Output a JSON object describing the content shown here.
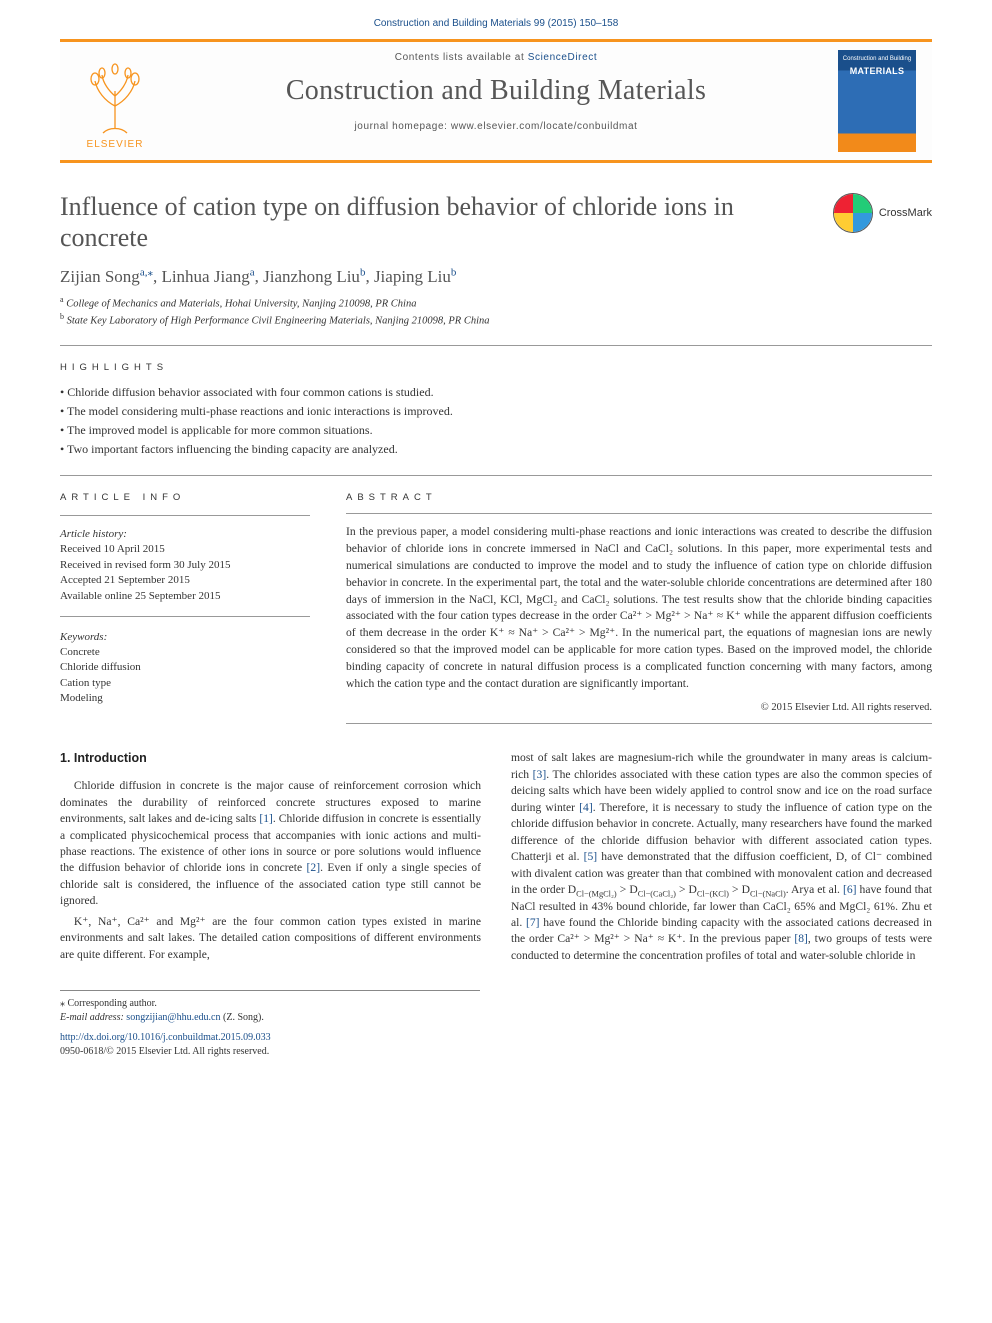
{
  "citation": "Construction and Building Materials 99 (2015) 150–158",
  "masthead": {
    "contents_prefix": "Contents lists available at ",
    "contents_link": "ScienceDirect",
    "journal_name": "Construction and Building Materials",
    "homepage_prefix": "journal homepage: ",
    "homepage_url": "www.elsevier.com/locate/conbuildmat",
    "elsevier_label": "ELSEVIER",
    "thumb_top": "Construction and Building",
    "thumb_title": "MATERIALS"
  },
  "crossmark_label": "CrossMark",
  "title": "Influence of cation type on diffusion behavior of chloride ions in concrete",
  "authors_html": "Zijian Song<sup class='aff'>a,⁎</sup>, Linhua Jiang<sup class='aff'>a</sup>, Jianzhong Liu<sup class='aff'>b</sup>, Jiaping Liu<sup class='aff'>b</sup>",
  "affiliations": [
    "College of Mechanics and Materials, Hohai University, Nanjing 210098, PR China",
    "State Key Laboratory of High Performance Civil Engineering Materials, Nanjing 210098, PR China"
  ],
  "aff_markers": [
    "a",
    "b"
  ],
  "labels": {
    "highlights": "HIGHLIGHTS",
    "article_info": "ARTICLE INFO",
    "abstract": "ABSTRACT"
  },
  "highlights": [
    "Chloride diffusion behavior associated with four common cations is studied.",
    "The model considering multi-phase reactions and ionic interactions is improved.",
    "The improved model is applicable for more common situations.",
    "Two important factors influencing the binding capacity are analyzed."
  ],
  "article_info": {
    "history_head": "Article history:",
    "history": [
      "Received 10 April 2015",
      "Received in revised form 30 July 2015",
      "Accepted 21 September 2015",
      "Available online 25 September 2015"
    ],
    "keywords_head": "Keywords:",
    "keywords": [
      "Concrete",
      "Chloride diffusion",
      "Cation type",
      "Modeling"
    ]
  },
  "abstract": "In the previous paper, a model considering multi-phase reactions and ionic interactions was created to describe the diffusion behavior of chloride ions in concrete immersed in NaCl and CaCl₂ solutions. In this paper, more experimental tests and numerical simulations are conducted to improve the model and to study the influence of cation type on chloride diffusion behavior in concrete. In the experimental part, the total and the water-soluble chloride concentrations are determined after 180 days of immersion in the NaCl, KCl, MgCl₂ and CaCl₂ solutions. The test results show that the chloride binding capacities associated with the four cation types decrease in the order Ca²⁺ > Mg²⁺ > Na⁺ ≈ K⁺ while the apparent diffusion coefficients of them decrease in the order K⁺ ≈ Na⁺ > Ca²⁺ > Mg²⁺. In the numerical part, the equations of magnesian ions are newly considered so that the improved model can be applicable for more cation types. Based on the improved model, the chloride binding capacity of concrete in natural diffusion process is a complicated function concerning with many factors, among which the cation type and the contact duration are significantly important.",
  "copyright": "© 2015 Elsevier Ltd. All rights reserved.",
  "section1_head": "1. Introduction",
  "body": {
    "p1a": "Chloride diffusion in concrete is the major cause of reinforcement corrosion which dominates the durability of reinforced concrete structures exposed to marine environments, salt lakes and de-icing salts ",
    "p1b": ". Chloride diffusion in concrete is essentially a complicated physicochemical process that accompanies with ionic actions and multi-phase reactions. The existence of other ions in source or pore solutions would influence the diffusion behavior of chloride ions in concrete ",
    "p1c": ". Even if only a single species of chloride salt is considered, the influence of the associated cation type still cannot be ignored.",
    "p2": "K⁺, Na⁺, Ca²⁺ and Mg²⁺ are the four common cation types existed in marine environments and salt lakes. The detailed cation compositions of different environments are quite different. For example,",
    "p3a": "most of salt lakes are magnesium-rich while the groundwater in many areas is calcium-rich ",
    "p3b": ". The chlorides associated with these cation types are also the common species of deicing salts which have been widely applied to control snow and ice on the road surface during winter ",
    "p3c": ". Therefore, it is necessary to study the influence of cation type on the chloride diffusion behavior in concrete. Actually, many researchers have found the marked difference of the chloride diffusion behavior with different associated cation types. Chatterji et al. ",
    "p3d": " have demonstrated that the diffusion coefficient, D, of Cl⁻ combined with divalent cation was greater than that combined with monovalent cation and decreased in the order D",
    "p3e": " > D",
    "p3f": " > D",
    "p3g": " > D",
    "p3h": ". Arya et al. ",
    "p3i": " have found that NaCl resulted in 43% bound chloride, far lower than CaCl₂ 65% and MgCl₂ 61%. Zhu et al. ",
    "p3j": " have found the Chloride binding capacity with the associated cations decreased in the order Ca²⁺ > Mg²⁺ > Na⁺ ≈ K⁺. In the previous paper ",
    "p3k": ", two groups of tests were conducted to determine the concentration profiles of total and water-soluble chloride in",
    "sub_mg": "Cl−(MgCl₂)",
    "sub_ca": "Cl−(CaCl₂)",
    "sub_k": "Cl−(KCl)",
    "sub_na": "Cl−(NaCl)"
  },
  "refs": {
    "r1": "[1]",
    "r2": "[2]",
    "r3": "[3]",
    "r4": "[4]",
    "r5": "[5]",
    "r6": "[6]",
    "r7": "[7]",
    "r8": "[8]"
  },
  "footnotes": {
    "corr": "Corresponding author.",
    "email_label": "E-mail address: ",
    "email": "songzijian@hhu.edu.cn",
    "email_who": " (Z. Song)."
  },
  "doi": {
    "url": "http://dx.doi.org/10.1016/j.conbuildmat.2015.09.033",
    "issn_line": "0950-0618/© 2015 Elsevier Ltd. All rights reserved."
  },
  "colors": {
    "accent": "#f7941e",
    "link": "#1a4f8b"
  }
}
